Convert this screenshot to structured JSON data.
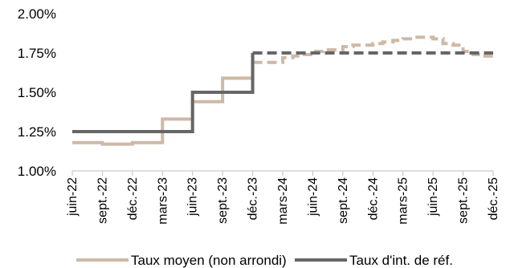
{
  "chart_data": {
    "type": "line",
    "title": "",
    "xlabel": "",
    "ylabel": "",
    "categories": [
      "juin-22",
      "sept.-22",
      "déc.-22",
      "mars-23",
      "juin-23",
      "sept.-23",
      "déc.-23",
      "mars-24",
      "juin-24",
      "sept.-24",
      "déc.-24",
      "mars-25",
      "juin-25",
      "sept.-25",
      "déc.-25"
    ],
    "ylim": [
      0.01,
      0.02
    ],
    "yticks": [
      "1.00%",
      "1.25%",
      "1.50%",
      "1.75%",
      "2.00%"
    ],
    "grid": false,
    "legend_position": "bottom",
    "series": [
      {
        "name": "Taux moyen (non arrondi)",
        "color": "#cdb9a6",
        "style": "step",
        "x": [
          "juin-22",
          "août-22",
          "sept.-22",
          "oct.-22",
          "nov.-22",
          "déc.-22",
          "janv.-23",
          "févr.-23",
          "mars-23",
          "avr.-23",
          "mai-23",
          "juin-23",
          "juil.-23",
          "août-23",
          "sept.-23",
          "oct.-23",
          "nov.-23",
          "déc.-23",
          "janv.-24",
          "févr.-24",
          "mars-24",
          "avr.-24",
          "mai-24",
          "juin-24",
          "juil.-24",
          "août-24",
          "sept.-24",
          "oct.-24",
          "nov.-24",
          "déc.-24",
          "janv.-25",
          "févr.-25",
          "mars-25",
          "avr.-25",
          "mai-25",
          "juin-25",
          "juil.-25",
          "août-25",
          "sept.-25",
          "oct.-25",
          "nov.-25",
          "déc.-25"
        ],
        "values": [
          0.0118,
          0.0118,
          0.0117,
          0.0117,
          0.0117,
          0.0118,
          0.0118,
          0.0118,
          0.0133,
          0.0133,
          0.0133,
          0.0144,
          0.0144,
          0.0144,
          0.0159,
          0.0159,
          0.0159,
          0.0175,
          null,
          null,
          null,
          null,
          null,
          null,
          null,
          null,
          null,
          null,
          null,
          null,
          null,
          null,
          null,
          null,
          null,
          null,
          null,
          null,
          null,
          null,
          null,
          null
        ]
      },
      {
        "name": "Taux moyen (non arrondi)",
        "color": "#cdb9a6",
        "style": "dashed-step",
        "values_after": {
          "x": [
            "déc.-23",
            "janv.-24",
            "févr.-24",
            "mars-24",
            "avr.-24",
            "mai-24",
            "juin-24",
            "juil.-24",
            "août-24",
            "sept.-24",
            "oct.-24",
            "nov.-24",
            "déc.-24",
            "janv.-25",
            "févr.-25",
            "mars-25",
            "avr.-25",
            "mai-25",
            "juin-25",
            "juil.-25",
            "août-25",
            "sept.-25",
            "oct.-25",
            "nov.-25",
            "déc.-25"
          ],
          "values": [
            0.0169,
            0.0169,
            0.0169,
            0.0172,
            0.0173,
            0.0174,
            0.0176,
            0.0177,
            0.0177,
            0.0179,
            0.018,
            0.018,
            0.0181,
            0.0182,
            0.0183,
            0.0184,
            0.0185,
            0.0185,
            0.0184,
            0.0181,
            0.018,
            0.0176,
            0.0174,
            0.0173,
            0.0173
          ]
        }
      },
      {
        "name": "Taux d'int. de réf.",
        "color": "#666666",
        "style": "step",
        "x": [
          "juin-22",
          "sept.-22",
          "déc.-22",
          "mars-23",
          "juin-23",
          "sept.-23",
          "déc.-23"
        ],
        "values": [
          0.0125,
          0.0125,
          0.0125,
          0.0125,
          0.015,
          0.015,
          0.0175
        ]
      },
      {
        "name": "Taux d'int. de réf.",
        "color": "#666666",
        "style": "dashed",
        "values_after": {
          "x": [
            "déc.-23",
            "déc.-25"
          ],
          "values": [
            0.0175,
            0.0175
          ]
        }
      }
    ],
    "legend": [
      {
        "label": "Taux moyen (non arrondi)",
        "color": "#cdb9a6"
      },
      {
        "label": "Taux d'int. de réf.",
        "color": "#666666"
      }
    ]
  }
}
